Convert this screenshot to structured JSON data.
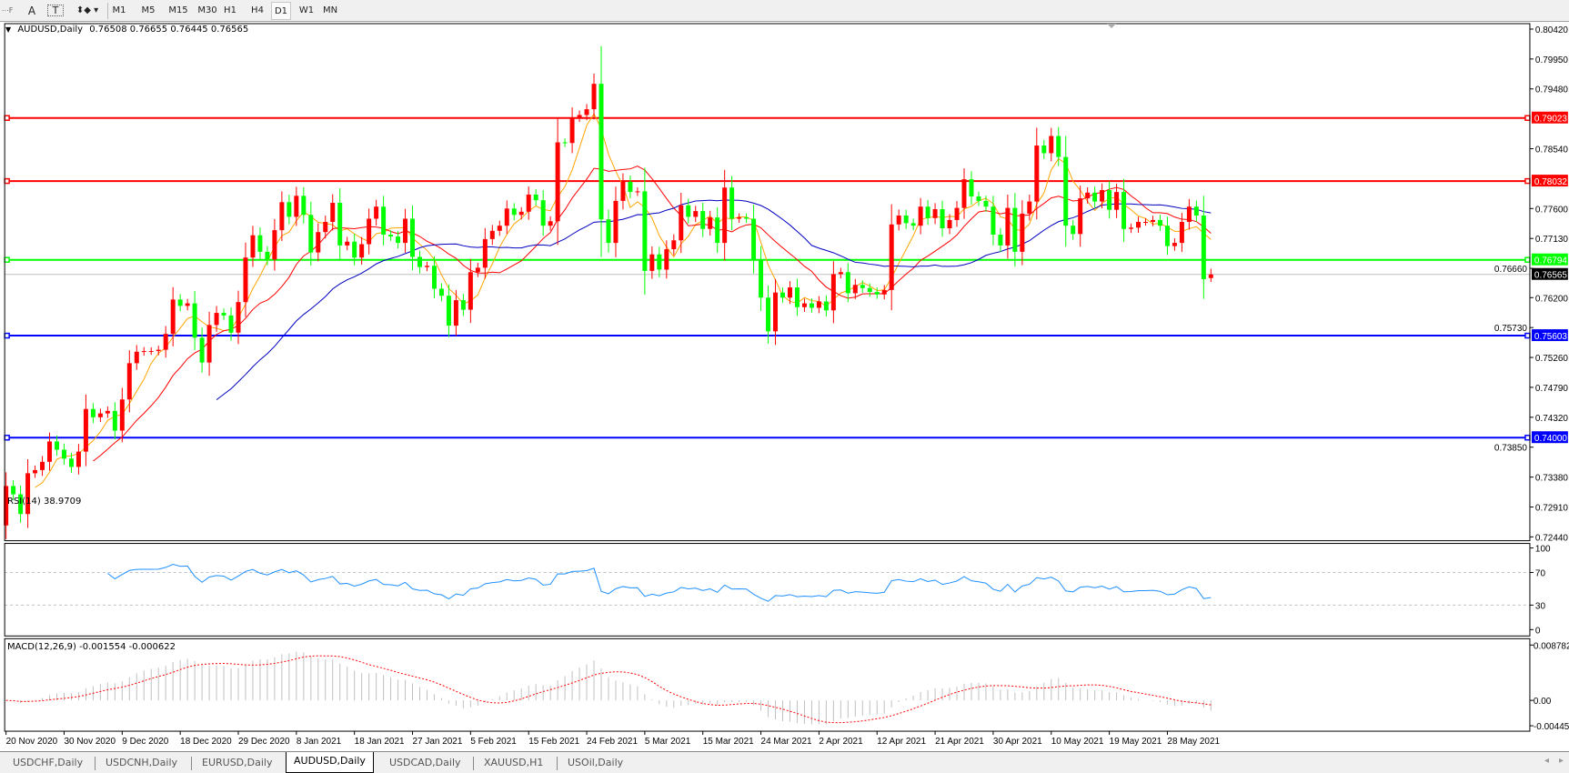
{
  "toolbar": {
    "tools": [
      {
        "icon": "grid-f-icon"
      },
      {
        "icon": "text-a-icon",
        "label": "A"
      },
      {
        "icon": "text-label-icon",
        "label": "T"
      },
      {
        "icon": "arrows-icon"
      }
    ],
    "periods": [
      "M1",
      "M5",
      "M15",
      "M30",
      "H1",
      "H4",
      "D1",
      "W1",
      "MN"
    ],
    "active_period": "D1"
  },
  "chart": {
    "symbol_label": "AUDUSD,Daily",
    "ohlc_label": "0.76508 0.76655 0.76445 0.76565",
    "price_ticks": [
      "0.80420",
      "0.79950",
      "0.79480",
      "0.78540",
      "0.77600",
      "0.77130",
      "0.76660",
      "0.76200",
      "0.75730",
      "0.75260",
      "0.74790",
      "0.74320",
      "0.73850",
      "0.73380",
      "0.72910",
      "0.72440"
    ],
    "current_price": "0.76565",
    "horizontal_lines": [
      {
        "price": "0.79023",
        "color": "#ff0000"
      },
      {
        "price": "0.78032",
        "color": "#ff0000"
      },
      {
        "price": "0.76794",
        "color": "#00ff00"
      },
      {
        "price": "0.75603",
        "color": "#0000ff"
      },
      {
        "price": "0.74000",
        "color": "#0000ff"
      }
    ],
    "colors": {
      "bull": "#ff0000",
      "bear": "#00ff00",
      "ma_fast": "#ffa500",
      "ma_mid": "#ff0000",
      "ma_slow": "#0000c0",
      "rsi": "#1e90ff",
      "macd_hist": "#c0c0c0",
      "macd_signal": "#ff0000"
    },
    "date_labels": [
      "20 Nov 2020",
      "30 Nov 2020",
      "9 Dec 2020",
      "18 Dec 2020",
      "29 Dec 2020",
      "8 Jan 2021",
      "18 Jan 2021",
      "27 Jan 2021",
      "5 Feb 2021",
      "15 Feb 2021",
      "24 Feb 2021",
      "5 Mar 2021",
      "15 Mar 2021",
      "24 Mar 2021",
      "2 Apr 2021",
      "12 Apr 2021",
      "21 Apr 2021",
      "30 Apr 2021",
      "10 May 2021",
      "19 May 2021",
      "28 May 2021"
    ]
  },
  "rsi": {
    "label": "RSI(14) 38.9709",
    "ticks": [
      "100",
      "70",
      "30",
      "0"
    ],
    "value": 38.9709
  },
  "macd": {
    "label": "MACD(12,26,9) -0.001554 -0.000622",
    "ticks": [
      "0.008782",
      "0.00",
      "-0.00445"
    ],
    "main": -0.001554,
    "signal": -0.000622
  },
  "chart_data": {
    "type": "candlestick",
    "symbol": "AUDUSD",
    "timeframe": "Daily",
    "first_open": 0.7262,
    "last_bar": {
      "open": 0.76508,
      "high": 0.76655,
      "low": 0.76445,
      "close": 0.76565
    },
    "closes": [
      0.7324,
      0.7311,
      0.728,
      0.7344,
      0.7349,
      0.7362,
      0.7394,
      0.7381,
      0.7367,
      0.7354,
      0.7378,
      0.7445,
      0.7432,
      0.7438,
      0.7442,
      0.7411,
      0.746,
      0.7517,
      0.7535,
      0.7536,
      0.7536,
      0.7538,
      0.7563,
      0.7617,
      0.7607,
      0.7611,
      0.7557,
      0.7518,
      0.7577,
      0.7596,
      0.7592,
      0.7565,
      0.7613,
      0.7683,
      0.7718,
      0.7692,
      0.768,
      0.7726,
      0.777,
      0.7747,
      0.778,
      0.775,
      0.7691,
      0.7723,
      0.7739,
      0.7769,
      0.7702,
      0.7708,
      0.7683,
      0.7704,
      0.7744,
      0.7763,
      0.7719,
      0.7716,
      0.7706,
      0.7744,
      0.7684,
      0.7668,
      0.767,
      0.7634,
      0.7623,
      0.7576,
      0.7616,
      0.7601,
      0.766,
      0.7667,
      0.7712,
      0.7725,
      0.7733,
      0.776,
      0.775,
      0.7755,
      0.7782,
      0.7773,
      0.7733,
      0.774,
      0.7864,
      0.7863,
      0.7903,
      0.7907,
      0.7916,
      0.7956,
      0.7743,
      0.7706,
      0.7772,
      0.7802,
      0.7786,
      0.7787,
      0.7662,
      0.7688,
      0.7664,
      0.7696,
      0.771,
      0.7765,
      0.7747,
      0.7756,
      0.7728,
      0.7746,
      0.7706,
      0.7793,
      0.7744,
      0.7746,
      0.7744,
      0.768,
      0.762,
      0.7567,
      0.7628,
      0.762,
      0.7636,
      0.7605,
      0.7611,
      0.7604,
      0.7614,
      0.76,
      0.7657,
      0.766,
      0.7627,
      0.764,
      0.7635,
      0.7629,
      0.7625,
      0.7632,
      0.7735,
      0.7749,
      0.7737,
      0.7733,
      0.7763,
      0.7745,
      0.7759,
      0.7729,
      0.7742,
      0.7761,
      0.7806,
      0.7779,
      0.7772,
      0.7763,
      0.7719,
      0.7702,
      0.7761,
      0.7692,
      0.7752,
      0.7771,
      0.7859,
      0.7847,
      0.7874,
      0.7841,
      0.7733,
      0.772,
      0.7776,
      0.7785,
      0.7771,
      0.7789,
      0.7758,
      0.7786,
      0.7728,
      0.773,
      0.7739,
      0.7739,
      0.7742,
      0.7733,
      0.7701,
      0.7706,
      0.7739,
      0.7763,
      0.7749,
      0.7649,
      0.76565
    ],
    "ylim": [
      0.7244,
      0.8042
    ]
  },
  "tabs": [
    {
      "label": "USDCHF,Daily",
      "active": false
    },
    {
      "label": "USDCNH,Daily",
      "active": false
    },
    {
      "label": "EURUSD,Daily",
      "active": false
    },
    {
      "label": "AUDUSD,Daily",
      "active": true
    },
    {
      "label": "USDCAD,Daily",
      "active": false
    },
    {
      "label": "XAUUSD,H1",
      "active": false
    },
    {
      "label": "USOil,Daily",
      "active": false
    }
  ],
  "scroll": {
    "left_icon": "scroll-left-icon",
    "right_icon": "scroll-right-icon"
  }
}
